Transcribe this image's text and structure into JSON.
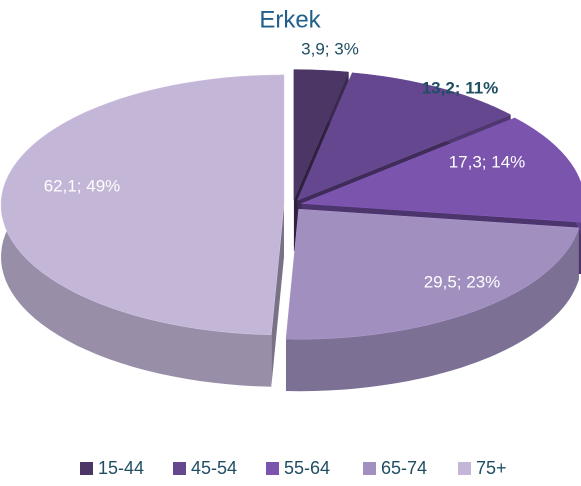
{
  "chart_data": {
    "type": "pie3d",
    "title": "Erkek",
    "categories": [
      "15-44",
      "45-54",
      "55-64",
      "65-74",
      "75+"
    ],
    "values": [
      3.9,
      13.2,
      17.3,
      29.5,
      62.1
    ],
    "value_labels": [
      "3,9; 3%",
      "13,2; 11%",
      "17,3; 14%",
      "29,5; 23%",
      "62,1; 49%"
    ],
    "colors": [
      "#4b3666",
      "#654790",
      "#7b54ae",
      "#a08fbf",
      "#c3b6d6"
    ],
    "legend": "bottom"
  }
}
